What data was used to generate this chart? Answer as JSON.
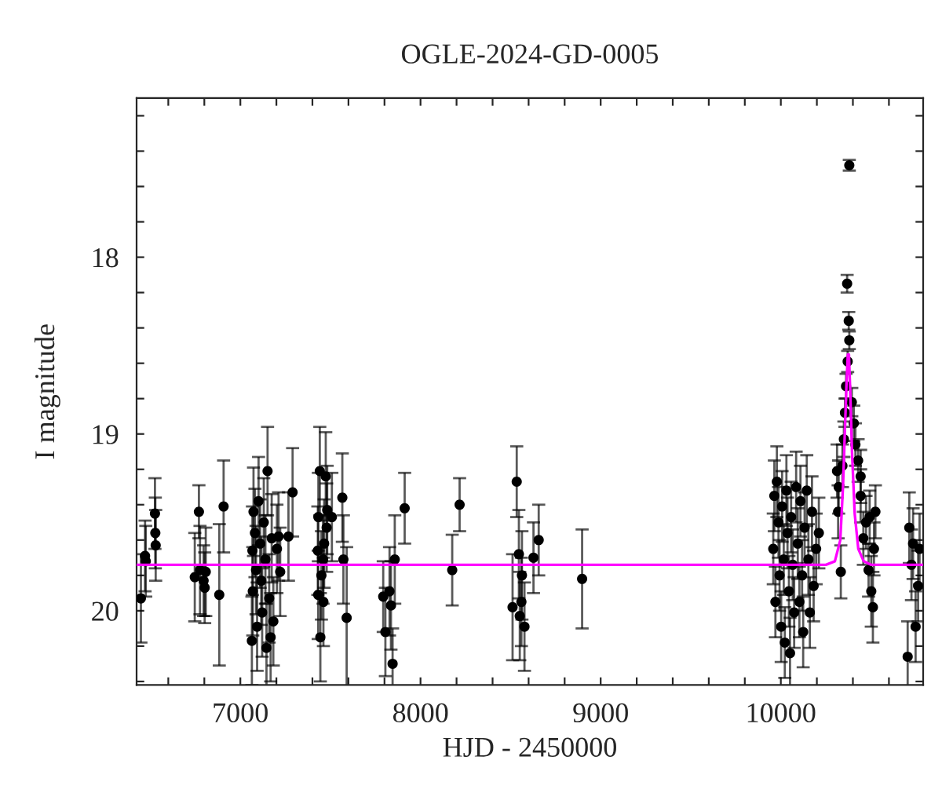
{
  "chart_data": {
    "type": "scatter",
    "title": "OGLE-2024-GD-0005",
    "xlabel": "HJD - 2450000",
    "ylabel": "I magnitude",
    "xlim": [
      6424,
      10790
    ],
    "ylim": [
      20.42,
      17.1
    ],
    "xticks": [
      {
        "value": 6600,
        "label": null
      },
      {
        "value": 6800,
        "label": null
      },
      7000,
      {
        "value": 7200,
        "label": null
      },
      {
        "value": 7400,
        "label": null
      },
      {
        "value": 7600,
        "label": null
      },
      {
        "value": 7800,
        "label": null
      },
      8000,
      {
        "value": 8200,
        "label": null
      },
      {
        "value": 8400,
        "label": null
      },
      {
        "value": 8600,
        "label": null
      },
      {
        "value": 8800,
        "label": null
      },
      9000,
      {
        "value": 9200,
        "label": null
      },
      {
        "value": 9400,
        "label": null
      },
      {
        "value": 9600,
        "label": null
      },
      {
        "value": 9800,
        "label": null
      },
      10000,
      {
        "value": 10200,
        "label": null
      },
      {
        "value": 10400,
        "label": null
      },
      {
        "value": 10600,
        "label": null
      }
    ],
    "yticks": [
      {
        "value": 17.2,
        "label": null
      },
      {
        "value": 17.4,
        "label": null
      },
      {
        "value": 17.6,
        "label": null
      },
      {
        "value": 17.8,
        "label": null
      },
      18,
      {
        "value": 18.2,
        "label": null
      },
      {
        "value": 18.4,
        "label": null
      },
      {
        "value": 18.6,
        "label": null
      },
      {
        "value": 18.8,
        "label": null
      },
      19,
      {
        "value": 19.2,
        "label": null
      },
      {
        "value": 19.4,
        "label": null
      },
      {
        "value": 19.6,
        "label": null
      },
      {
        "value": 19.8,
        "label": null
      },
      20,
      {
        "value": 20.2,
        "label": null
      },
      {
        "value": 20.4,
        "label": null
      }
    ],
    "grid": false,
    "legend": false,
    "series": [
      {
        "marker": "circle",
        "color": "#000000",
        "x": [
          6448,
          6471,
          6475,
          6526,
          6528,
          6530,
          6747,
          6770,
          6776,
          6796,
          6808,
          6802,
          6883,
          6907,
          7073,
          7067,
          7069,
          7064,
          7081,
          7087,
          7093,
          7101,
          7110,
          7116,
          7121,
          7130,
          7139,
          7145,
          7151,
          7160,
          7168,
          7174,
          7183,
          7203,
          7212,
          7221,
          7267,
          7290,
          7441,
          7433,
          7430,
          7432,
          7444,
          7450,
          7459,
          7465,
          7461,
          7474,
          7482,
          7508,
          7479,
          7566,
          7572,
          7590,
          7793,
          7805,
          7828,
          7836,
          7845,
          7857,
          7912,
          8176,
          8217,
          8534,
          8511,
          8546,
          8563,
          8560,
          8551,
          8577,
          8627,
          8656,
          8897,
          9964,
          9958,
          9970,
          9978,
          9987,
          9993,
          10002,
          10007,
          10016,
          10022,
          10031,
          10037,
          10045,
          10051,
          10057,
          10066,
          10074,
          10085,
          10094,
          10103,
          10109,
          10118,
          10124,
          10132,
          10144,
          10153,
          10161,
          10173,
          10182,
          10196,
          10211,
          10312,
          10321,
          10333,
          10380,
          10368,
          10377,
          10380,
          10371,
          10362,
          10356,
          10350,
          10342,
          10318,
          10394,
          10405,
          10414,
          10429,
          10443,
          10443,
          10458,
          10473,
          10487,
          10493,
          10502,
          10511,
          10517,
          10525,
          10704,
          10713,
          10725,
          10734,
          10748,
          10762,
          10770
        ],
        "values": [
          19.93,
          19.69,
          19.72,
          19.45,
          19.56,
          19.63,
          19.81,
          19.44,
          19.77,
          19.83,
          19.78,
          19.87,
          19.91,
          19.41,
          19.44,
          19.66,
          19.89,
          20.17,
          19.56,
          19.77,
          20.09,
          19.38,
          19.62,
          19.83,
          20.01,
          19.5,
          19.71,
          20.21,
          19.21,
          19.93,
          20.15,
          19.59,
          20.06,
          19.65,
          19.58,
          19.78,
          19.58,
          19.33,
          19.21,
          19.47,
          19.66,
          19.91,
          20.15,
          19.8,
          19.71,
          19.62,
          19.95,
          19.24,
          19.43,
          19.47,
          19.53,
          19.36,
          19.71,
          20.04,
          19.92,
          20.12,
          19.89,
          19.97,
          20.3,
          19.71,
          19.42,
          19.77,
          19.4,
          19.27,
          19.98,
          19.68,
          19.8,
          19.95,
          20.03,
          20.09,
          19.7,
          19.6,
          19.82,
          19.35,
          19.65,
          19.95,
          19.27,
          19.5,
          19.8,
          20.09,
          19.41,
          19.71,
          20.18,
          19.32,
          19.56,
          19.89,
          20.24,
          19.47,
          19.74,
          20.01,
          19.3,
          19.62,
          19.95,
          19.38,
          19.8,
          20.12,
          19.53,
          19.32,
          19.71,
          20.01,
          19.44,
          19.86,
          19.65,
          19.56,
          19.21,
          19.3,
          19.78,
          17.48,
          18.15,
          18.36,
          18.47,
          18.59,
          18.73,
          18.88,
          19.03,
          19.18,
          19.44,
          18.82,
          18.94,
          19.06,
          19.15,
          19.24,
          19.35,
          19.59,
          19.5,
          19.77,
          19.47,
          19.89,
          19.98,
          19.65,
          19.44,
          20.26,
          19.53,
          19.74,
          19.62,
          20.09,
          19.86,
          19.65
        ],
        "errors": [
          0.25,
          0.2,
          0.2,
          0.2,
          0.2,
          0.2,
          0.25,
          0.15,
          0.25,
          0.2,
          0.25,
          0.2,
          0.4,
          0.26,
          0.25,
          0.25,
          0.25,
          0.25,
          0.25,
          0.25,
          0.25,
          0.25,
          0.25,
          0.25,
          0.25,
          0.25,
          0.25,
          0.25,
          0.25,
          0.25,
          0.25,
          0.25,
          0.25,
          0.25,
          0.25,
          0.25,
          0.25,
          0.25,
          0.25,
          0.25,
          0.25,
          0.25,
          0.25,
          0.25,
          0.25,
          0.25,
          0.25,
          0.25,
          0.25,
          0.25,
          0.25,
          0.25,
          0.25,
          0.4,
          0.2,
          0.25,
          0.25,
          0.25,
          0.2,
          0.25,
          0.2,
          0.2,
          0.15,
          0.2,
          0.3,
          0.25,
          0.25,
          0.25,
          0.25,
          0.25,
          0.2,
          0.2,
          0.28,
          0.2,
          0.2,
          0.2,
          0.2,
          0.2,
          0.2,
          0.2,
          0.2,
          0.2,
          0.2,
          0.2,
          0.2,
          0.2,
          0.2,
          0.2,
          0.2,
          0.2,
          0.2,
          0.2,
          0.2,
          0.2,
          0.2,
          0.2,
          0.2,
          0.2,
          0.2,
          0.2,
          0.2,
          0.2,
          0.2,
          0.2,
          0.15,
          0.15,
          0.15,
          0.03,
          0.05,
          0.05,
          0.05,
          0.06,
          0.07,
          0.08,
          0.1,
          0.12,
          0.15,
          0.08,
          0.1,
          0.12,
          0.12,
          0.15,
          0.15,
          0.15,
          0.15,
          0.15,
          0.15,
          0.2,
          0.2,
          0.15,
          0.15,
          0.2,
          0.2,
          0.2,
          0.2,
          0.2,
          0.2,
          0.2
        ]
      },
      {
        "type": "line",
        "color": "#ff00ff",
        "x": [
          6424,
          10250,
          10300,
          10330,
          10345,
          10355,
          10365,
          10372,
          10378,
          10385,
          10395,
          10410,
          10430,
          10460,
          10500,
          10790
        ],
        "values": [
          19.74,
          19.74,
          19.72,
          19.6,
          19.3,
          19.0,
          18.7,
          18.55,
          18.55,
          18.75,
          19.1,
          19.45,
          19.65,
          19.72,
          19.74,
          19.74
        ]
      }
    ]
  }
}
